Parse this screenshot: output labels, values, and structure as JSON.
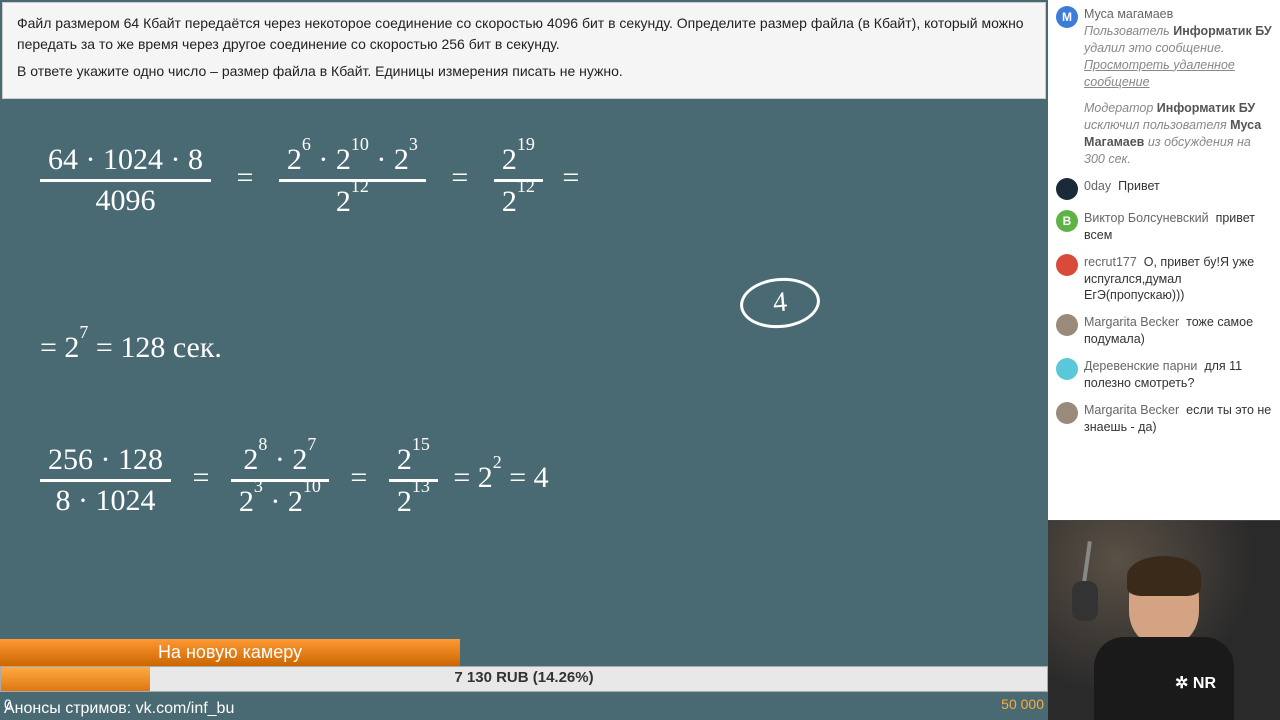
{
  "problem": {
    "line1": "Файл размером 64 Кбайт передаётся через некоторое соединение со скоростью 4096 бит в секунду. Определите размер файла (в Кбайт), который можно передать за то же время через другое соединение со скоростью 256 бит в секунду.",
    "line2": "В ответе укажите одно число – размер файла в Кбайт. Единицы измерения писать не нужно.",
    "bg_color": "#f5f5f5",
    "text_color": "#222222"
  },
  "board": {
    "bg_color": "#4a6a73",
    "ink_color": "#ffffff",
    "eq1_frac_top": "64 · 1024 · 8",
    "eq1_frac_bot": "4096",
    "eq1_mid_top": "2⁶ · 2¹⁰ · 2³",
    "eq1_mid_bot": "2¹²",
    "eq1_right_top": "2¹⁹",
    "eq1_right_bot": "2¹²",
    "eq2": "= 2⁷ = 128 сек.",
    "circled_ans": "4",
    "eq3_frac_top": "256 · 128",
    "eq3_frac_bot": "8 · 1024",
    "eq3_mid_top": "2⁸ · 2⁷",
    "eq3_mid_bot": "2³ · 2¹⁰",
    "eq3_r1_top": "2¹⁵",
    "eq3_r1_bot": "2¹³",
    "eq3_r2": "= 2² = 4"
  },
  "donation": {
    "title": "На новую камеру",
    "amount_text": "7 130 RUB (14.26%)",
    "percent": 14.26,
    "min": "0",
    "max": "50 000",
    "title_bg": "#e07b1f",
    "fill_color": "#f08a2a"
  },
  "announce": "Анонсы стримов: vk.com/inf_bu",
  "chat": {
    "messages": [
      {
        "type": "sys",
        "avatar_bg": "#3b7dd8",
        "avatar_letter": "М",
        "user": "Муса магамаев",
        "text_pre": "Пользователь ",
        "bold1": "Информатик БУ",
        "text_mid": " удалил это сообщение. ",
        "link": "Просмотреть удаленное сообщение"
      },
      {
        "type": "sys2",
        "text_pre": "Модератор ",
        "bold1": "Информатик БУ",
        "text_mid": " исключил пользователя ",
        "bold2": "Муса Магамаев",
        "text_end": " из обсуждения на 300 сек."
      },
      {
        "type": "msg",
        "avatar_bg": "#1a2a3a",
        "avatar_letter": "",
        "user": "0day",
        "text": "Привет"
      },
      {
        "type": "msg",
        "avatar_bg": "#5fb345",
        "avatar_letter": "В",
        "user": "Виктор Болсуневский",
        "text": "привет всем"
      },
      {
        "type": "msg",
        "avatar_bg": "#d84b3b",
        "avatar_letter": "",
        "user": "recrut177",
        "text": "О, привет бу!Я уже испугался,думал ЕгЭ(пропускаю)))"
      },
      {
        "type": "msg",
        "avatar_bg": "#9a8a7a",
        "avatar_letter": "",
        "user": "Margarita Becker",
        "text": "тоже самое подумала)"
      },
      {
        "type": "msg",
        "avatar_bg": "#5ac8d8",
        "avatar_letter": "",
        "user": "Деревенские парни",
        "text": "для 11 полезно смотреть?"
      },
      {
        "type": "msg",
        "avatar_bg": "#9a8a7a",
        "avatar_letter": "",
        "user": "Margarita Becker",
        "text": "если ты это не знаешь - да)"
      }
    ]
  },
  "cam": {
    "logo_text": "✲ NR"
  }
}
